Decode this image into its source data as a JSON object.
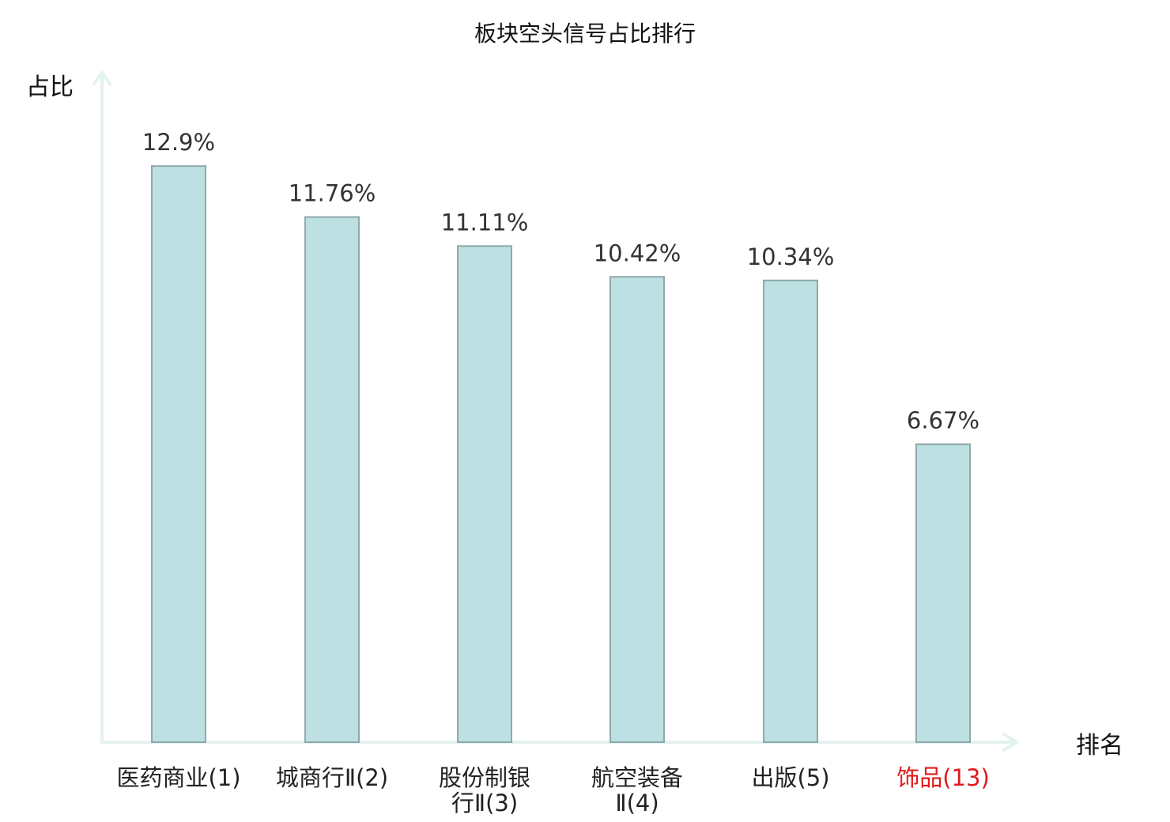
{
  "chart_data": {
    "type": "bar",
    "title": "板块空头信号占比排行",
    "ylabel": "占比",
    "xlabel": "排名",
    "categories": [
      {
        "name": "医药商业",
        "rank": "(1)",
        "lines": [
          "医药商业(1)"
        ],
        "highlight": false
      },
      {
        "name": "城商行Ⅱ",
        "rank": "(2)",
        "lines": [
          "城商行Ⅱ(2)"
        ],
        "highlight": false
      },
      {
        "name": "股份制银行Ⅱ",
        "rank": "(3)",
        "lines": [
          "股份制银",
          "行Ⅱ(3)"
        ],
        "highlight": false
      },
      {
        "name": "航空装备Ⅱ",
        "rank": "(4)",
        "lines": [
          "航空装备",
          "Ⅱ(4)"
        ],
        "highlight": false
      },
      {
        "name": "出版",
        "rank": "(5)",
        "lines": [
          "出版(5)"
        ],
        "highlight": false
      },
      {
        "name": "饰品",
        "rank": "(13)",
        "lines": [
          "饰品(13)"
        ],
        "highlight": true
      }
    ],
    "values": [
      12.9,
      11.76,
      11.11,
      10.42,
      10.34,
      6.67
    ],
    "value_labels": [
      "12.9%",
      "11.76%",
      "11.11%",
      "10.42%",
      "10.34%",
      "6.67%"
    ],
    "unit": "%",
    "ylim": [
      0,
      15
    ],
    "grid": false,
    "legend": "none",
    "colors": {
      "bar_fill": "#bde0e2",
      "bar_stroke": "#8fa9aa",
      "axis": "#e3f2f0",
      "highlight_label": "#e0191b"
    }
  }
}
